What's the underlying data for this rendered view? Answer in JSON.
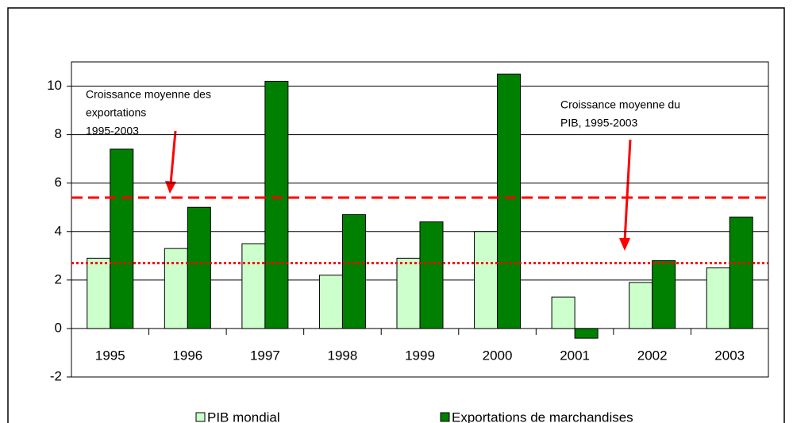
{
  "chart_data": {
    "type": "bar",
    "categories": [
      "1995",
      "1996",
      "1997",
      "1998",
      "1999",
      "2000",
      "2001",
      "2002",
      "2003"
    ],
    "series": [
      {
        "name": "PIB mondial",
        "color": "#ccffcc",
        "values": [
          2.9,
          3.3,
          3.5,
          2.2,
          2.9,
          4.0,
          1.3,
          1.9,
          2.5
        ]
      },
      {
        "name": "Exportations de marchandises",
        "color": "#008000",
        "values": [
          7.4,
          5.0,
          10.2,
          4.7,
          4.4,
          10.5,
          -0.4,
          2.8,
          4.6
        ]
      }
    ],
    "ylim": [
      -2,
      11
    ],
    "yticks": [
      -2,
      0,
      2,
      4,
      6,
      8,
      10
    ],
    "grid": true,
    "reference_lines": [
      {
        "value": 5.4,
        "style": "dashed",
        "color": "#ff0000"
      },
      {
        "value": 2.7,
        "style": "dotted",
        "color": "#ff0000"
      }
    ],
    "annotations": [
      {
        "lines": [
          "Croissance moyenne des",
          "exportations",
          "1995-2003"
        ]
      },
      {
        "lines": [
          "Croissance moyenne du",
          "PIB, 1995-2003"
        ]
      }
    ],
    "legend": "bottom"
  }
}
